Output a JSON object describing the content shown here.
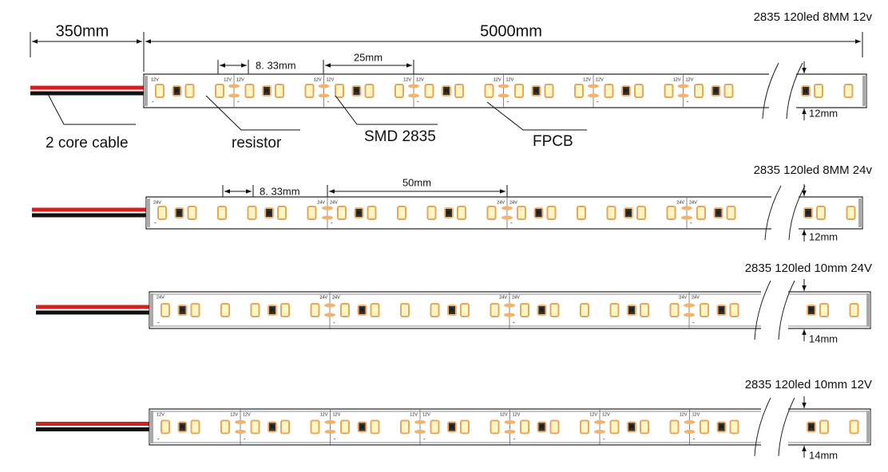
{
  "dimensions": {
    "cable_length": "350mm",
    "strip_length": "5000mm"
  },
  "callouts": {
    "cable": "2 core cable",
    "resistor": "resistor",
    "led": "SMD 2835",
    "pcb": "FPCB"
  },
  "strips": [
    {
      "title": "2835  120led 8MM  12v",
      "pitch": "8. 33mm",
      "cut_length": "25mm",
      "width": "12mm",
      "voltage_mark": "12V",
      "resistor_mark": "R",
      "minus_mark": "-"
    },
    {
      "title": "2835  120led 8MM  24v",
      "pitch": "8. 33mm",
      "cut_length": "50mm",
      "width": "12mm",
      "voltage_mark": "24V",
      "resistor_mark": "R",
      "minus_mark": "-"
    },
    {
      "title": "2835 120led 10mm 24V",
      "width": "14mm",
      "voltage_mark": "24V",
      "resistor_mark": "R",
      "minus_mark": "-"
    },
    {
      "title": "2835 120led 10mm 12V",
      "width": "14mm",
      "voltage_mark": "12V",
      "resistor_mark": "R",
      "minus_mark": "-"
    }
  ]
}
